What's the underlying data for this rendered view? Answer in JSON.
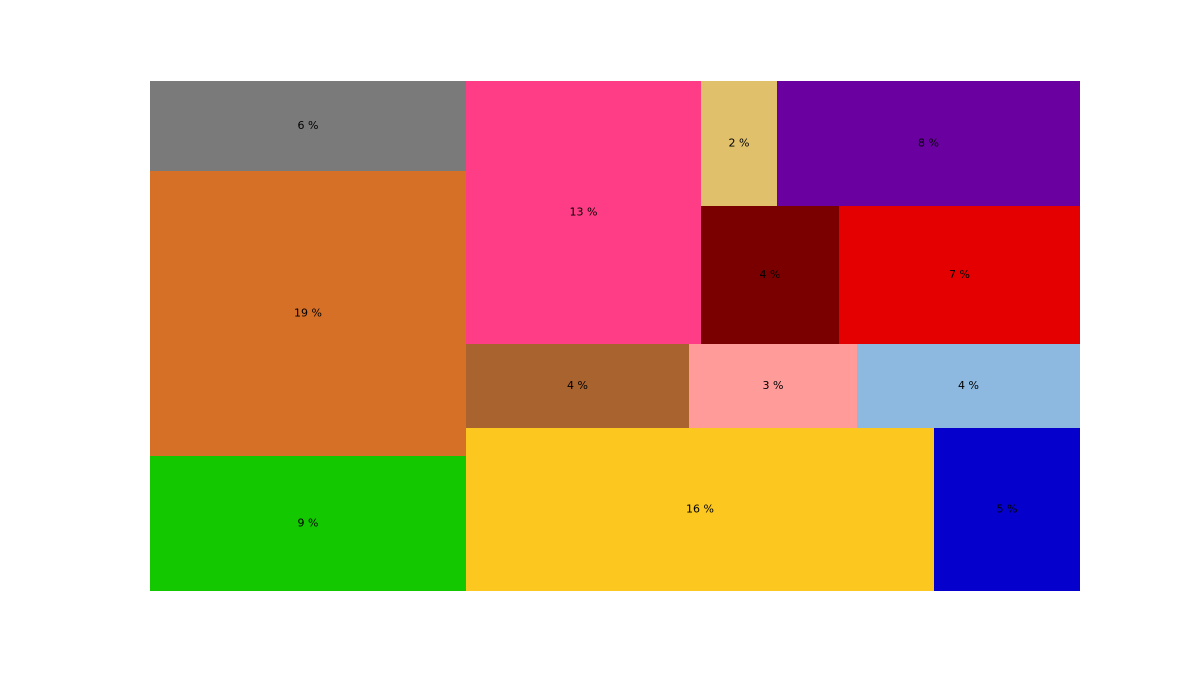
{
  "chart_data": {
    "type": "treemap",
    "title": "",
    "tiles": [
      {
        "label": "6 %",
        "value": 6,
        "color": "#7a7a7a"
      },
      {
        "label": "19 %",
        "value": 19,
        "color": "#d67027"
      },
      {
        "label": "9 %",
        "value": 9,
        "color": "#14c800"
      },
      {
        "label": "13 %",
        "value": 13,
        "color": "#ff3d86"
      },
      {
        "label": "2 %",
        "value": 2,
        "color": "#e0c06b"
      },
      {
        "label": "8 %",
        "value": 8,
        "color": "#6a009f"
      },
      {
        "label": "4 %",
        "value": 4,
        "color": "#7a0000"
      },
      {
        "label": "7 %",
        "value": 7,
        "color": "#e40000"
      },
      {
        "label": "4 %",
        "value": 4,
        "color": "#a8632f"
      },
      {
        "label": "3 %",
        "value": 3,
        "color": "#ff9b99"
      },
      {
        "label": "4 %",
        "value": 4,
        "color": "#8db9e0"
      },
      {
        "label": "16 %",
        "value": 16,
        "color": "#fcc820"
      },
      {
        "label": "5 %",
        "value": 5,
        "color": "#0600cc"
      }
    ]
  }
}
